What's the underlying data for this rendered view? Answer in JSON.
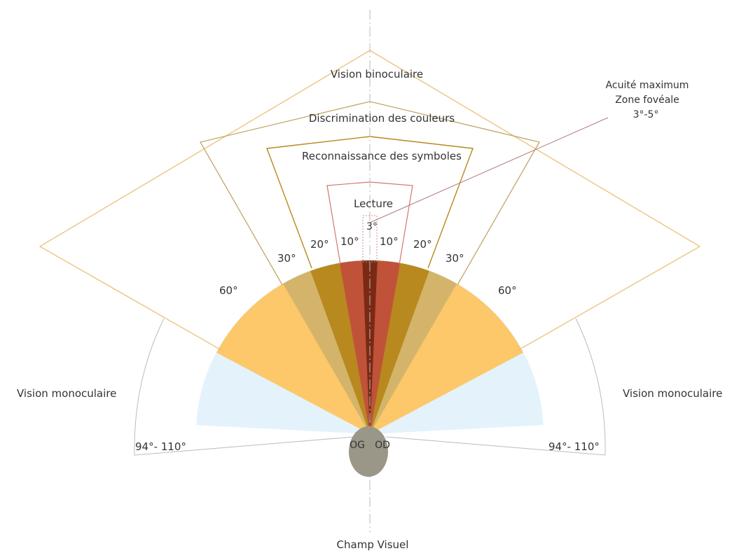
{
  "zones": {
    "binocular": {
      "label": "Vision binoculaire",
      "angle": "60°",
      "color": "#fcc86a",
      "stroke": "#e8bc6e"
    },
    "color": {
      "label": "Discrimination des couleurs",
      "angle": "30°",
      "color": "#d3b46a",
      "stroke": "#c1a66a"
    },
    "symbols": {
      "label": "Reconnaissance des symboles",
      "angle": "20°",
      "color": "#b8891e",
      "stroke": "#b8891e"
    },
    "reading": {
      "label": "Lecture",
      "angle": "10°",
      "color": "#c0523a",
      "stroke": "#d4776a"
    },
    "fovea": {
      "angle": "3°",
      "color": "#7a2a14"
    },
    "monocular": {
      "label": "Vision monoculaire",
      "angle": "94°- 110°",
      "color": "#e4f2fb",
      "stroke": "#bbbbbb"
    }
  },
  "acuity": {
    "lines": [
      "Acuité maximum",
      "Zone fovéale",
      "3°-5°"
    ],
    "leader_color": "#b07a7a"
  },
  "eyes": {
    "left": "OG",
    "right": "OD",
    "color": "#9a9688"
  },
  "axis_color": "#bbbbbb",
  "caption": "Champ Visuel"
}
